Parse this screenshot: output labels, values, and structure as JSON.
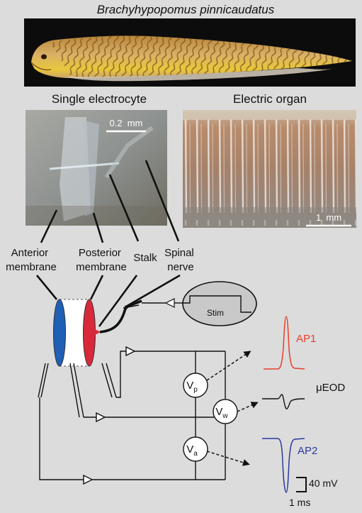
{
  "species_name": "Brachyhypopomus pinnicaudatus",
  "panels": {
    "single_electrocyte": "Single electrocyte",
    "electric_organ": "Electric organ"
  },
  "scale_bars": {
    "electrocyte": "0.2  mm",
    "organ": "1  mm"
  },
  "anatomy_labels": {
    "anterior_membrane": [
      "Anterior",
      "membrane"
    ],
    "posterior_membrane": [
      "Posterior",
      "membrane"
    ],
    "stalk": "Stalk",
    "spinal_nerve": [
      "Spinal",
      "nerve"
    ]
  },
  "stimulator": "Stim",
  "voltmeters": {
    "vp": {
      "symbol": "V",
      "sub": "p"
    },
    "vw": {
      "symbol": "V",
      "sub": "w"
    },
    "va": {
      "symbol": "V",
      "sub": "a"
    }
  },
  "traces": {
    "ap1": {
      "label": "AP1",
      "color": "#e8402a"
    },
    "ueod": {
      "label": "μEOD",
      "color": "#111111"
    },
    "ap2": {
      "label": "AP2",
      "color": "#2a3a9e"
    }
  },
  "trace_scale": {
    "voltage": "40 mV",
    "time": "1 ms"
  },
  "colors": {
    "anterior_membrane": "#1f5fb5",
    "posterior_membrane": "#d8283a",
    "fish_body": "#c89a4a",
    "background": "#dcdcdc"
  }
}
